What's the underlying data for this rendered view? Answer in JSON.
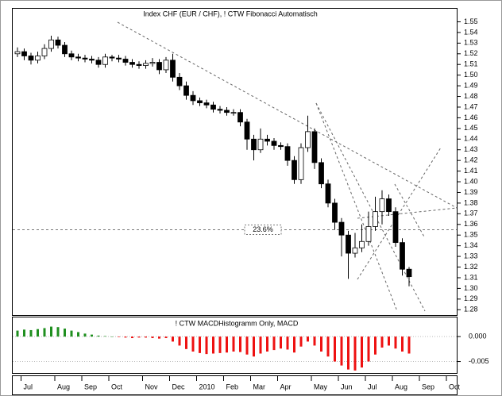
{
  "chart_data": [
    {
      "type": "candlestick",
      "title": "Index CHF (EUR / CHF), ! CTW Fibonacci Automatisch",
      "categories": [
        null,
        "Jul",
        null,
        null,
        null,
        null,
        "Aug",
        null,
        null,
        null,
        "Sep",
        null,
        null,
        null,
        "Oct",
        null,
        null,
        null,
        null,
        "Nov",
        null,
        null,
        null,
        "Dec",
        null,
        null,
        null,
        "2010",
        null,
        null,
        null,
        "Feb",
        null,
        null,
        null,
        "Mar",
        null,
        null,
        null,
        "Apr",
        null,
        null,
        null,
        null,
        "May",
        null,
        null,
        null,
        "Jun",
        null,
        null,
        null,
        "Jul",
        null,
        null,
        null,
        "Aug",
        null,
        null,
        null,
        "Sep",
        null,
        null,
        null,
        "Oct"
      ],
      "open": [
        1.52,
        1.522,
        1.518,
        1.514,
        1.518,
        1.525,
        1.533,
        1.528,
        1.52,
        1.517,
        1.516,
        1.515,
        1.514,
        1.51,
        1.517,
        1.516,
        1.515,
        1.512,
        1.51,
        1.509,
        1.511,
        1.512,
        1.505,
        1.514,
        1.498,
        1.49,
        1.481,
        1.476,
        1.474,
        1.472,
        1.468,
        1.467,
        1.465,
        1.465,
        1.456,
        1.44,
        1.43,
        1.44,
        1.438,
        1.434,
        1.433,
        1.42,
        1.402,
        1.432,
        1.447,
        1.418,
        1.398,
        1.38,
        1.362,
        1.35,
        1.333,
        1.338,
        1.344,
        1.358,
        1.372,
        1.384,
        1.372,
        1.343,
        1.318,
        null,
        null,
        null,
        null,
        null,
        null
      ],
      "high": [
        1.526,
        1.525,
        1.521,
        1.522,
        1.529,
        1.537,
        1.536,
        1.531,
        1.523,
        1.52,
        1.519,
        1.518,
        1.517,
        1.52,
        1.519,
        1.519,
        1.518,
        1.515,
        1.513,
        1.514,
        1.516,
        1.515,
        1.517,
        1.52,
        1.502,
        1.494,
        1.485,
        1.479,
        1.477,
        1.475,
        1.471,
        1.47,
        1.468,
        1.468,
        1.459,
        1.444,
        1.45,
        1.444,
        1.441,
        1.437,
        1.436,
        1.424,
        1.436,
        1.462,
        1.45,
        1.422,
        1.402,
        1.384,
        1.366,
        1.354,
        1.352,
        1.36,
        1.372,
        1.386,
        1.392,
        1.388,
        1.376,
        1.347,
        1.32,
        null,
        null,
        null,
        null,
        null,
        null
      ],
      "low": [
        1.517,
        1.514,
        1.51,
        1.511,
        1.515,
        1.522,
        1.525,
        1.517,
        1.514,
        1.513,
        1.512,
        1.511,
        1.507,
        1.507,
        1.513,
        1.512,
        1.509,
        1.507,
        1.506,
        1.506,
        1.508,
        1.501,
        1.502,
        1.494,
        1.486,
        1.477,
        1.472,
        1.471,
        1.469,
        1.465,
        1.464,
        1.462,
        1.462,
        1.452,
        1.43,
        1.42,
        1.427,
        1.434,
        1.43,
        1.43,
        1.415,
        1.398,
        1.398,
        1.428,
        1.412,
        1.394,
        1.376,
        1.355,
        1.33,
        1.309,
        1.329,
        1.334,
        1.34,
        1.354,
        1.36,
        1.368,
        1.339,
        1.312,
        1.302,
        null,
        null,
        null,
        null,
        null,
        null
      ],
      "close": [
        1.522,
        1.518,
        1.514,
        1.518,
        1.525,
        1.533,
        1.528,
        1.52,
        1.517,
        1.516,
        1.515,
        1.514,
        1.51,
        1.517,
        1.516,
        1.515,
        1.512,
        1.51,
        1.509,
        1.511,
        1.512,
        1.505,
        1.514,
        1.498,
        1.49,
        1.481,
        1.476,
        1.474,
        1.472,
        1.468,
        1.467,
        1.465,
        1.465,
        1.456,
        1.44,
        1.43,
        1.44,
        1.438,
        1.434,
        1.433,
        1.42,
        1.402,
        1.432,
        1.447,
        1.418,
        1.398,
        1.38,
        1.362,
        1.35,
        1.333,
        1.338,
        1.344,
        1.358,
        1.372,
        1.384,
        1.372,
        1.343,
        1.318,
        1.311,
        null,
        null,
        null,
        null,
        null,
        null
      ],
      "up_color": "#ffffff",
      "down_color": "#000000",
      "ylim": [
        1.275,
        1.563
      ],
      "yticks": [
        1.28,
        1.29,
        {
          "value": 1.3,
          "label": "1.30"
        },
        1.31,
        1.32,
        1.33,
        1.34,
        1.35,
        1.36,
        1.37,
        1.38,
        1.39,
        {
          "value": 1.4,
          "label": "1.40"
        },
        1.41,
        1.42,
        1.43,
        1.44,
        1.45,
        1.46,
        1.47,
        1.48,
        1.49,
        {
          "value": 1.5,
          "label": "1.50"
        },
        1.51,
        1.52,
        1.53,
        1.54,
        1.55
      ],
      "fib_price": 1.355,
      "fib_label": "23.6%"
    },
    {
      "type": "histogram_bar",
      "title": "! CTW MACDHistogramm Only, MACD",
      "values": [
        0.0012,
        0.0014,
        0.0013,
        0.0015,
        0.0017,
        0.002,
        0.0019,
        0.0016,
        0.0012,
        0.0009,
        0.0006,
        0.0004,
        0.0002,
        0.0001,
        0.0,
        -0.0001,
        -0.0002,
        -0.0003,
        -0.0002,
        -0.0002,
        -0.0003,
        -0.0004,
        -0.0003,
        -0.001,
        -0.0018,
        -0.0025,
        -0.003,
        -0.0033,
        -0.0035,
        -0.0034,
        -0.0033,
        -0.0032,
        -0.003,
        -0.0031,
        -0.0036,
        -0.004,
        -0.0034,
        -0.003,
        -0.0027,
        -0.0024,
        -0.0026,
        -0.0032,
        -0.002,
        -0.001,
        -0.0018,
        -0.003,
        -0.004,
        -0.005,
        -0.0058,
        -0.0066,
        -0.0068,
        -0.0062,
        -0.005,
        -0.0036,
        -0.0022,
        -0.0018,
        -0.0024,
        -0.003,
        -0.0034,
        null,
        null,
        null,
        null,
        null,
        null
      ],
      "positive_color": "#1f8f1f",
      "negative_color": "#ee1111",
      "ylim": [
        -0.0073,
        0.004
      ],
      "yticks": [
        {
          "value": 0,
          "label": "0.000"
        },
        {
          "value": -0.005,
          "label": "-0.005"
        }
      ]
    }
  ]
}
